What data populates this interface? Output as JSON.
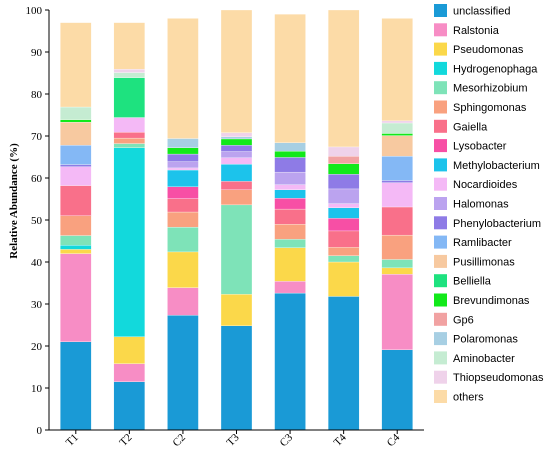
{
  "chart_data": {
    "type": "bar",
    "stacked": true,
    "ylabel": "Relative Abundance  (%)",
    "ylim": [
      0,
      100
    ],
    "yticks": [
      0,
      10,
      20,
      30,
      40,
      50,
      60,
      70,
      80,
      90,
      100
    ],
    "categories": [
      "T1",
      "T2",
      "C2",
      "T3",
      "C3",
      "T4",
      "C4"
    ],
    "legend_position": "right",
    "series": [
      {
        "name": "unclassified",
        "color": "#1a9ad6",
        "values": [
          21.0,
          11.5,
          27.3,
          24.8,
          32.6,
          31.8,
          19.1
        ]
      },
      {
        "name": "Ralstonia",
        "color": "#f78dc5",
        "values": [
          21.0,
          4.3,
          6.6,
          0.0,
          2.8,
          0.0,
          18.0
        ]
      },
      {
        "name": "Pseudomonas",
        "color": "#fbd84a",
        "values": [
          1.0,
          6.4,
          8.5,
          7.5,
          8.0,
          8.2,
          1.5
        ]
      },
      {
        "name": "Hydrogenophaga",
        "color": "#12d9dc",
        "values": [
          1.0,
          45.0,
          0.0,
          0.0,
          0.0,
          0.0,
          0.0
        ]
      },
      {
        "name": "Mesorhizobium",
        "color": "#7ee3b8",
        "values": [
          2.3,
          1.0,
          5.9,
          21.3,
          2.0,
          1.5,
          2.0
        ]
      },
      {
        "name": "Sphingomonas",
        "color": "#f9a17f",
        "values": [
          4.7,
          1.3,
          3.6,
          3.6,
          3.6,
          2.0,
          5.8
        ]
      },
      {
        "name": "Gaiella",
        "color": "#f9708a",
        "values": [
          7.2,
          1.4,
          3.2,
          2.0,
          3.6,
          3.9,
          6.7
        ]
      },
      {
        "name": "Lysobacter",
        "color": "#f74fa5",
        "values": [
          0.0,
          0.0,
          2.8,
          0.0,
          2.6,
          3.0,
          0.0
        ]
      },
      {
        "name": "Methylobacterium",
        "color": "#1cc3eb",
        "values": [
          0.0,
          0.0,
          4.0,
          4.1,
          2.0,
          2.5,
          0.0
        ]
      },
      {
        "name": "Nocardioides",
        "color": "#f4b9f6",
        "values": [
          4.5,
          3.5,
          0.5,
          1.5,
          1.2,
          1.0,
          5.8
        ]
      },
      {
        "name": "Halomonas",
        "color": "#bba3ef",
        "values": [
          0.0,
          0.0,
          1.5,
          1.5,
          3.0,
          3.5,
          0.0
        ]
      },
      {
        "name": "Phenylobacterium",
        "color": "#8e7be6",
        "values": [
          0.5,
          0.0,
          1.8,
          1.5,
          3.5,
          3.5,
          0.5
        ]
      },
      {
        "name": "Ramlibacter",
        "color": "#84b8f5",
        "values": [
          4.6,
          0.0,
          0.0,
          0.0,
          0.0,
          0.0,
          5.8
        ]
      },
      {
        "name": "Pusillimonas",
        "color": "#f7c9a0",
        "values": [
          5.5,
          0.0,
          0.0,
          0.0,
          0.0,
          0.0,
          4.9
        ]
      },
      {
        "name": "Belliella",
        "color": "#1ee27f",
        "values": [
          0.0,
          9.5,
          0.0,
          0.0,
          0.0,
          0.0,
          0.0
        ]
      },
      {
        "name": "Brevundimonas",
        "color": "#12e91a",
        "values": [
          0.6,
          0.0,
          1.5,
          1.5,
          1.5,
          2.5,
          0.5
        ]
      },
      {
        "name": "Gp6",
        "color": "#f1a2a2",
        "values": [
          0.0,
          0.0,
          0.0,
          0.0,
          0.0,
          1.8,
          0.0
        ]
      },
      {
        "name": "Polaromonas",
        "color": "#a7cfe3",
        "values": [
          0.0,
          0.0,
          2.2,
          0.5,
          2.0,
          0.0,
          0.0
        ]
      },
      {
        "name": "Aminobacter",
        "color": "#c5ecd2",
        "values": [
          3.0,
          1.2,
          0.0,
          0.0,
          0.0,
          0.0,
          2.5
        ]
      },
      {
        "name": "Thiopseudomonas",
        "color": "#efd2ea",
        "values": [
          0.0,
          0.8,
          0.0,
          1.0,
          0.0,
          2.2,
          0.5
        ]
      },
      {
        "name": "others",
        "color": "#fcdba7",
        "values": [
          20.1,
          11.1,
          28.6,
          29.2,
          30.6,
          32.6,
          24.4
        ]
      }
    ]
  }
}
